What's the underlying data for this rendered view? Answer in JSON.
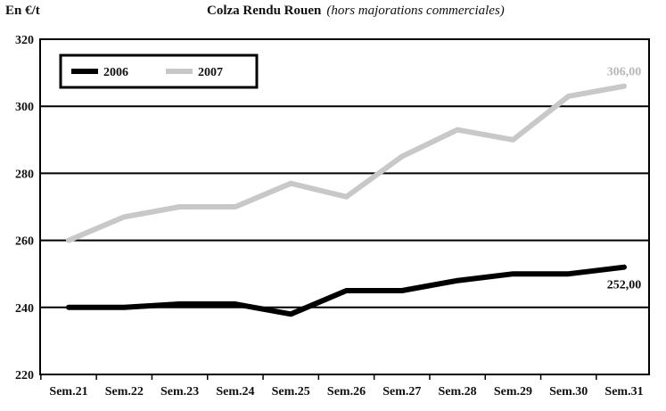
{
  "chart_data": {
    "type": "line",
    "unit_label": "En €/t",
    "title": "Colza Rendu Rouen",
    "subtitle": "(hors majorations commerciales)",
    "categories": [
      "Sem.21",
      "Sem.22",
      "Sem.23",
      "Sem.24",
      "Sem.25",
      "Sem.26",
      "Sem.27",
      "Sem.28",
      "Sem.29",
      "Sem.30",
      "Sem.31"
    ],
    "ylim": [
      220,
      320
    ],
    "yticks": [
      220,
      240,
      260,
      280,
      300,
      320
    ],
    "grid": true,
    "legend_position": "top-left",
    "series": [
      {
        "name": "2006",
        "color": "#000000",
        "values": [
          240,
          240,
          241,
          241,
          238,
          245,
          245,
          248,
          250,
          250,
          252
        ]
      },
      {
        "name": "2007",
        "color": "#c8c8c8",
        "values": [
          260,
          267,
          270,
          270,
          277,
          273,
          285,
          293,
          290,
          303,
          306
        ]
      }
    ],
    "annotations": [
      {
        "series": 0,
        "text": "252,00"
      },
      {
        "series": 1,
        "text": "306,00"
      }
    ]
  }
}
